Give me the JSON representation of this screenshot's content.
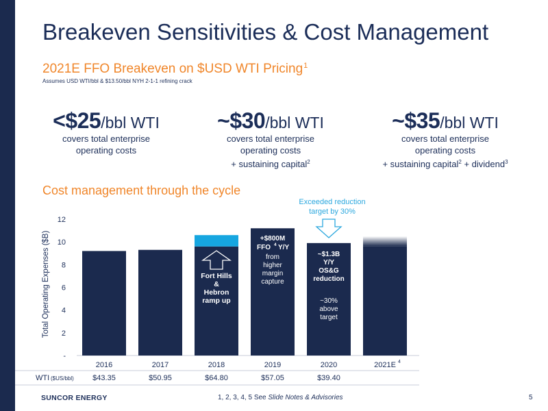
{
  "slide": {
    "title": "Breakeven Sensitivities & Cost Management",
    "subtitle": "2021E FFO Breakeven on $USD WTI Pricing",
    "subtitle_sup": "1",
    "subtitle_note": "Assumes USD WTI/bbl & $13.50/bbl NYH 2-1-1 refining crack",
    "section_heading": "Cost management through the cycle",
    "callout": "Exceeded reduction target by 30%"
  },
  "breakevens": [
    {
      "prefix": "<",
      "value": "$25",
      "unit": "/bbl WTI",
      "lines": [
        "covers total enterprise",
        "operating costs"
      ]
    },
    {
      "prefix": "~",
      "value": "$30",
      "unit": "/bbl WTI",
      "lines": [
        "covers total enterprise",
        "operating costs",
        "+ sustaining capital"
      ],
      "sup2": "2"
    },
    {
      "prefix": "~",
      "value": "$35",
      "unit": "/bbl WTI",
      "lines": [
        "covers total enterprise",
        "operating costs",
        "+ sustaining capital",
        " + dividend"
      ],
      "sup2": "2",
      "sup3": "3"
    }
  ],
  "chart_data": {
    "type": "bar",
    "ylabel": "Total Operating Expenses ($B)",
    "ylim": [
      0,
      12
    ],
    "yticks": [
      "-",
      "2",
      "4",
      "6",
      "8",
      "10",
      "12"
    ],
    "categories": [
      "2016",
      "2017",
      "2018",
      "2019",
      "2020",
      "2021E"
    ],
    "category_sup": [
      "",
      "",
      "",
      "",
      "",
      "4"
    ],
    "values": [
      9.2,
      9.3,
      9.6,
      11.2,
      9.9,
      10.5
    ],
    "increment_2018": {
      "base": 9.6,
      "top": 10.6
    },
    "bar_notes": {
      "2018": [
        "Fort Hills",
        "&",
        "Hebron",
        "ramp up"
      ],
      "2019_bold": [
        "+$800M",
        "FFO",
        "Y/Y"
      ],
      "2019_sup": "4",
      "2019_rest": [
        "from",
        "higher",
        "margin",
        "capture"
      ],
      "2020_bold": [
        "~$1.3B",
        "Y/Y",
        "OS&G",
        "reduction"
      ],
      "2020_rest": [
        "~30%",
        "above",
        "target"
      ]
    },
    "colors": {
      "bar": "#1b2a4e",
      "increment": "#16a6e0",
      "callout": "#2aa7de"
    }
  },
  "wti_row": {
    "label": "WTI",
    "label_unit": "($US/bbl)",
    "values": [
      "$43.35",
      "$50.95",
      "$64.80",
      "$57.05",
      "$39.40",
      ""
    ]
  },
  "footer": {
    "brand": "SUNCOR ENERGY",
    "notes_prefix": "1, 2, 3, 4, 5 See ",
    "notes_italic": "Slide Notes & Advisories",
    "page": "5"
  }
}
